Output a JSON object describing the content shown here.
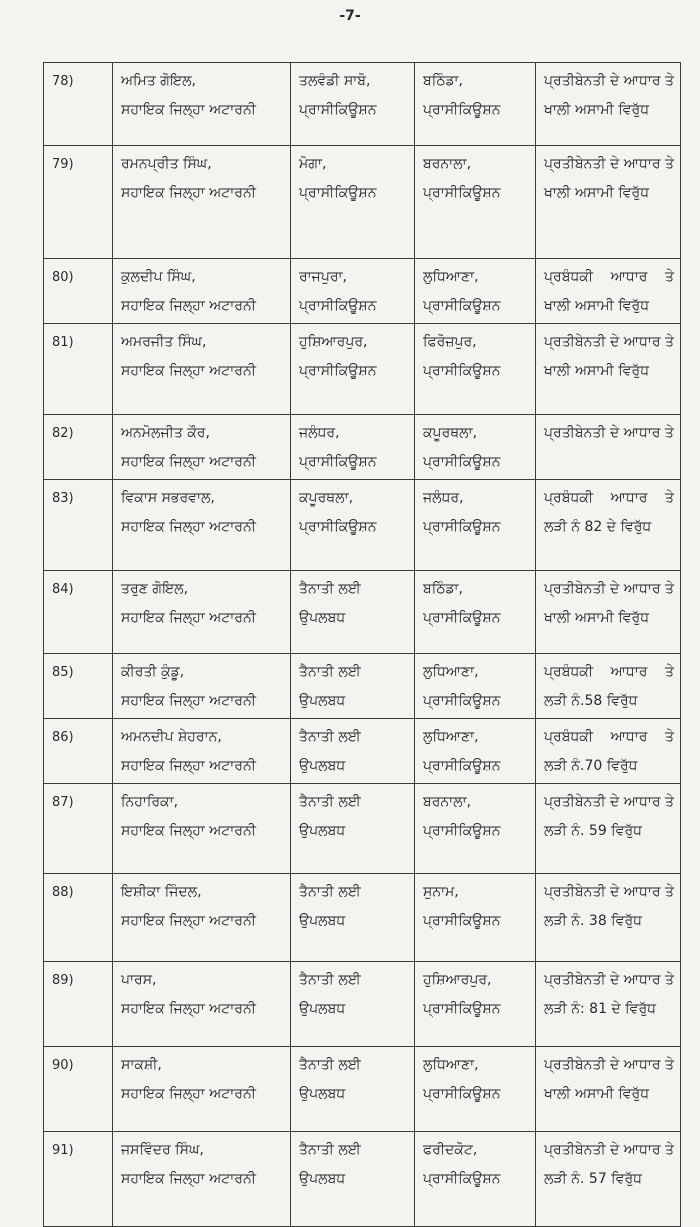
{
  "page_number": "-7-",
  "rows": [
    {
      "num": "78)",
      "name": "ਅਮਿਤ ਗੋਇਲ,",
      "designation": "ਸਹਾਇਕ ਜਿਲ੍ਹਾ ਅਟਾਰਨੀ",
      "from1": "ਤਲਵੰਡੀ ਸਾਬੋ,",
      "from2": "ਪ੍ਰਾਸੀਕਿਊਸ਼ਨ",
      "to1": "ਬਠਿੰਡਾ,",
      "to2": "ਪ੍ਰਾਸੀਕਿਊਸ਼ਨ",
      "reason": "ਪ੍ਰਤੀਬੇਨਤੀ ਦੇ ਆਧਾਰ ਤੇ ਖਾਲੀ ਅਸਾਮੀ ਵਿਰੁੱਧ"
    },
    {
      "num": "79)",
      "name": "ਰਮਨਪ੍ਰੀਤ ਸਿੰਘ,",
      "designation": "ਸਹਾਇਕ ਜਿਲ੍ਹਾ ਅਟਾਰਨੀ",
      "from1": "ਮੋਗਾ,",
      "from2": "ਪ੍ਰਾਸੀਕਿਊਸ਼ਨ",
      "to1": "ਬਰਨਾਲਾ,",
      "to2": "ਪ੍ਰਾਸੀਕਿਊਸ਼ਨ",
      "reason": "ਪ੍ਰਤੀਬੇਨਤੀ ਦੇ ਆਧਾਰ ਤੇ ਖਾਲੀ ਅਸਾਮੀ ਵਿਰੁੱਧ"
    },
    {
      "num": "80)",
      "name": "ਕੁਲਦੀਪ ਸਿੰਘ,",
      "designation": "ਸਹਾਇਕ ਜਿਲ੍ਹਾ ਅਟਾਰਨੀ",
      "from1": "ਰਾਜਪੁਰਾ,",
      "from2": "ਪ੍ਰਾਸੀਕਿਊਸ਼ਨ",
      "to1": "ਲੁਧਿਆਣਾ,",
      "to2": "ਪ੍ਰਾਸੀਕਿਊਸ਼ਨ",
      "reason": "ਪ੍ਰਬੰਧਕੀ ਆਧਾਰ ਤੇ ਖਾਲੀ ਅਸਾਮੀ ਵਿਰੁੱਧ"
    },
    {
      "num": "81)",
      "name": "ਅਮਰਜੀਤ ਸਿੰਘ,",
      "designation": "ਸਹਾਇਕ ਜਿਲ੍ਹਾ ਅਟਾਰਨੀ",
      "from1": "ਹੁਸ਼ਿਆਰਪੁਰ,",
      "from2": "ਪ੍ਰਾਸੀਕਿਊਸ਼ਨ",
      "to1": "ਫਿਰੋਜ਼ਪੁਰ,",
      "to2": "ਪ੍ਰਾਸੀਕਿਊਸ਼ਨ",
      "reason": "ਪ੍ਰਤੀਬੇਨਤੀ ਦੇ ਆਧਾਰ ਤੇ ਖਾਲੀ ਅਸਾਮੀ ਵਿਰੁੱਧ"
    },
    {
      "num": "82)",
      "name": "ਅਨਮੋਲਜੀਤ ਕੌਰ,",
      "designation": "ਸਹਾਇਕ ਜਿਲ੍ਹਾ ਅਟਾਰਨੀ",
      "from1": "ਜਲੰਧਰ,",
      "from2": "ਪ੍ਰਾਸੀਕਿਊਸ਼ਨ",
      "to1": "ਕਪੂਰਥਲਾ,",
      "to2": "ਪ੍ਰਾਸੀਕਿਊਸ਼ਨ",
      "reason": "ਪ੍ਰਤੀਬੇਨਤੀ ਦੇ ਆਧਾਰ ਤੇ"
    },
    {
      "num": "83)",
      "name": "ਵਿਕਾਸ ਸਭਰਵਾਲ,",
      "designation": "ਸਹਾਇਕ ਜਿਲ੍ਹਾ ਅਟਾਰਨੀ",
      "from1": "ਕਪੂਰਥਲਾ,",
      "from2": "ਪ੍ਰਾਸੀਕਿਊਸ਼ਨ",
      "to1": "ਜਲੰਧਰ,",
      "to2": "ਪ੍ਰਾਸੀਕਿਊਸ਼ਨ",
      "reason": "ਪ੍ਰਬੰਧਕੀ ਆਧਾਰ ਤੇ ਲੜੀ ਨੰ 82 ਦੇ ਵਿਰੁੱਧ"
    },
    {
      "num": "84)",
      "name": "ਤਰੁਣ ਗੋਇਲ,",
      "designation": "ਸਹਾਇਕ ਜਿਲ੍ਹਾ ਅਟਾਰਨੀ",
      "from1": "ਤੈਨਾਤੀ ਲਈ",
      "from2": "ਉਪਲਬਧ",
      "to1": "ਬਠਿੰਡਾ,",
      "to2": "ਪ੍ਰਾਸੀਕਿਊਸ਼ਨ",
      "reason": "ਪ੍ਰਤੀਬੇਨਤੀ ਦੇ ਆਧਾਰ ਤੇ ਖਾਲੀ ਅਸਾਮੀ ਵਿਰੁੱਧ"
    },
    {
      "num": "85)",
      "name": "ਕੀਰਤੀ ਕੁੰਡੂ,",
      "designation": "ਸਹਾਇਕ ਜਿਲ੍ਹਾ ਅਟਾਰਨੀ",
      "from1": "ਤੈਨਾਤੀ ਲਈ",
      "from2": "ਉਪਲਬਧ",
      "to1": "ਲੁਧਿਆਣਾ,",
      "to2": "ਪ੍ਰਾਸੀਕਿਊਸ਼ਨ",
      "reason": "ਪ੍ਰਬੰਧਕੀ ਆਧਾਰ ਤੇ ਲੜੀ ਨੰ.58 ਵਿਰੁੱਧ"
    },
    {
      "num": "86)",
      "name": "ਅਮਨਦੀਪ ਸ਼ੇਹਰਾਨ,",
      "designation": "ਸਹਾਇਕ ਜਿਲ੍ਹਾ ਅਟਾਰਨੀ",
      "from1": "ਤੈਨਾਤੀ ਲਈ",
      "from2": "ਉਪਲਬਧ",
      "to1": "ਲੁਧਿਆਣਾ,",
      "to2": "ਪ੍ਰਾਸੀਕਿਊਸ਼ਨ",
      "reason": "ਪ੍ਰਬੰਧਕੀ ਆਧਾਰ ਤੇ ਲੜੀ ਨੰ.70 ਵਿਰੁੱਧ"
    },
    {
      "num": "87)",
      "name": "ਨਿਹਾਰਿਕਾ,",
      "designation": "ਸਹਾਇਕ ਜਿਲ੍ਹਾ ਅਟਾਰਨੀ",
      "from1": "ਤੈਨਾਤੀ ਲਈ",
      "from2": "ਉਪਲਬਧ",
      "to1": "ਬਰਨਾਲਾ,",
      "to2": "ਪ੍ਰਾਸੀਕਿਊਸ਼ਨ",
      "reason": "ਪ੍ਰਤੀਬੇਨਤੀ ਦੇ ਆਧਾਰ ਤੇ ਲੜੀ ਨੰ. 59 ਵਿਰੁੱਧ"
    },
    {
      "num": "88)",
      "name": "ਇਸ਼ੀਕਾ ਜਿੰਦਲ,",
      "designation": "ਸਹਾਇਕ ਜਿਲ੍ਹਾ ਅਟਾਰਨੀ",
      "from1": "ਤੈਨਾਤੀ ਲਈ",
      "from2": "ਉਪਲਬਧ",
      "to1": "ਸੁਨਾਮ,",
      "to2": "ਪ੍ਰਾਸੀਕਿਊਸ਼ਨ",
      "reason": "ਪ੍ਰਤੀਬੇਨਤੀ ਦੇ ਆਧਾਰ ਤੇ ਲੜੀ ਨੰ. 38 ਵਿਰੁੱਧ"
    },
    {
      "num": "89)",
      "name": "ਪਾਰਸ,",
      "designation": "ਸਹਾਇਕ ਜਿਲ੍ਹਾ ਅਟਾਰਨੀ",
      "from1": "ਤੈਨਾਤੀ ਲਈ",
      "from2": "ਉਪਲਬਧ",
      "to1": "ਹੁਸ਼ਿਆਰਪੁਰ,",
      "to2": "ਪ੍ਰਾਸੀਕਿਊਸ਼ਨ",
      "reason": "ਪ੍ਰਤੀਬੇਨਤੀ ਦੇ ਆਧਾਰ ਤੇ ਲੜੀ ਨੰ: 81 ਦੇ ਵਿਰੁੱਧ"
    },
    {
      "num": "90)",
      "name": "ਸਾਕਸ਼ੀ,",
      "designation": "ਸਹਾਇਕ ਜਿਲ੍ਹਾ ਅਟਾਰਨੀ",
      "from1": "ਤੈਨਾਤੀ ਲਈ",
      "from2": "ਉਪਲਬਧ",
      "to1": "ਲੁਧਿਆਣਾ,",
      "to2": "ਪ੍ਰਾਸੀਕਿਊਸ਼ਨ",
      "reason": "ਪ੍ਰਤੀਬੇਨਤੀ ਦੇ ਆਧਾਰ ਤੇ ਖਾਲੀ ਅਸਾਮੀ ਵਿਰੁੱਧ"
    },
    {
      "num": "91)",
      "name": "ਜਸਵਿੰਦਰ ਸਿੰਘ,",
      "designation": "ਸਹਾਇਕ ਜਿਲ੍ਹਾ ਅਟਾਰਨੀ",
      "from1": "ਤੈਨਾਤੀ ਲਈ",
      "from2": "ਉਪਲਬਧ",
      "to1": "ਫਰੀਦਕੋਟ,",
      "to2": "ਪ੍ਰਾਸੀਕਿਊਸ਼ਨ",
      "reason": "ਪ੍ਰਤੀਬੇਨਤੀ ਦੇ ਆਧਾਰ ਤੇ ਲੜੀ ਨੰ. 57 ਵਿਰੁੱਧ"
    }
  ]
}
